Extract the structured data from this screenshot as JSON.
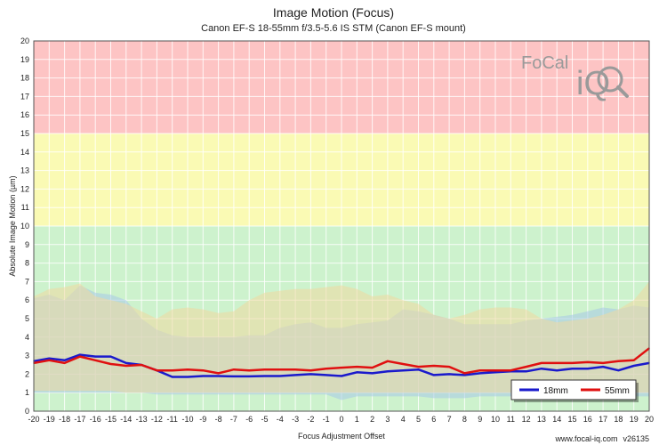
{
  "chart_data": {
    "type": "line",
    "title": "Image Motion (Focus)",
    "subtitle": "Canon EF-S 18-55mm f/3.5-5.6 IS STM (Canon EF-S mount)",
    "xlabel": "Focus Adjustment Offset",
    "ylabel": "Absolute Image Motion (µm)",
    "xlim": [
      -20,
      20
    ],
    "ylim": [
      0,
      20
    ],
    "x_ticks": [
      -20,
      -19,
      -18,
      -17,
      -16,
      -15,
      -14,
      -13,
      -12,
      -11,
      -10,
      -9,
      -8,
      -7,
      -6,
      -5,
      -4,
      -3,
      -2,
      -1,
      0,
      1,
      2,
      3,
      4,
      5,
      6,
      7,
      8,
      9,
      10,
      11,
      12,
      13,
      14,
      15,
      16,
      17,
      18,
      19,
      20
    ],
    "y_ticks": [
      0,
      1,
      2,
      3,
      4,
      5,
      6,
      7,
      8,
      9,
      10,
      11,
      12,
      13,
      14,
      15,
      16,
      17,
      18,
      19,
      20
    ],
    "grid": true,
    "legend_position": "bottom-right",
    "zones": [
      {
        "from": 0,
        "to": 10,
        "color": "#cdf2cd"
      },
      {
        "from": 10,
        "to": 15,
        "color": "#fafab4"
      },
      {
        "from": 15,
        "to": 20,
        "color": "#fdc4c4"
      }
    ],
    "x": [
      -20,
      -19,
      -18,
      -17,
      -16,
      -15,
      -14,
      -13,
      -12,
      -11,
      -10,
      -9,
      -8,
      -7,
      -6,
      -5,
      -4,
      -3,
      -2,
      -1,
      0,
      1,
      2,
      3,
      4,
      5,
      6,
      7,
      8,
      9,
      10,
      11,
      12,
      13,
      14,
      15,
      16,
      17,
      18,
      19,
      20
    ],
    "series": [
      {
        "name": "18mm",
        "color": "#1a1acc",
        "band_color": "#a8c8e8",
        "values": [
          2.7,
          2.85,
          2.75,
          3.05,
          2.95,
          2.95,
          2.6,
          2.5,
          2.2,
          1.85,
          1.85,
          1.9,
          1.9,
          1.88,
          1.88,
          1.9,
          1.9,
          1.95,
          2.0,
          1.95,
          1.9,
          2.1,
          2.05,
          2.15,
          2.2,
          2.25,
          1.95,
          2.0,
          1.95,
          2.05,
          2.1,
          2.15,
          2.15,
          2.3,
          2.2,
          2.3,
          2.3,
          2.4,
          2.2,
          2.45,
          2.6
        ],
        "band_upper": [
          6.1,
          6.3,
          6.0,
          6.8,
          6.4,
          6.3,
          6.0,
          5.0,
          4.4,
          4.1,
          4.0,
          4.0,
          4.0,
          4.0,
          4.1,
          4.1,
          4.5,
          4.7,
          4.8,
          4.5,
          4.5,
          4.7,
          4.8,
          4.9,
          5.5,
          5.4,
          5.2,
          5.0,
          4.7,
          4.7,
          4.7,
          4.7,
          4.9,
          5.0,
          5.1,
          5.2,
          5.4,
          5.6,
          5.5,
          5.7,
          5.6
        ],
        "band_lower": [
          1.0,
          1.0,
          1.0,
          1.0,
          1.0,
          1.0,
          1.0,
          1.0,
          0.9,
          0.9,
          0.9,
          0.9,
          0.9,
          0.9,
          0.9,
          0.9,
          0.9,
          0.9,
          0.9,
          0.9,
          0.6,
          0.8,
          0.8,
          0.8,
          0.8,
          0.8,
          0.7,
          0.7,
          0.7,
          0.8,
          0.8,
          0.8,
          0.8,
          0.8,
          0.8,
          0.8,
          0.8,
          0.8,
          0.8,
          0.8,
          0.8
        ]
      },
      {
        "name": "55mm",
        "color": "#e01010",
        "band_color": "#f0d8a0",
        "values": [
          2.6,
          2.75,
          2.6,
          2.95,
          2.75,
          2.55,
          2.45,
          2.5,
          2.2,
          2.2,
          2.25,
          2.2,
          2.05,
          2.25,
          2.2,
          2.25,
          2.25,
          2.25,
          2.2,
          2.3,
          2.35,
          2.4,
          2.35,
          2.7,
          2.55,
          2.4,
          2.45,
          2.4,
          2.05,
          2.2,
          2.2,
          2.2,
          2.4,
          2.6,
          2.6,
          2.6,
          2.65,
          2.6,
          2.7,
          2.75,
          3.4
        ],
        "band_upper": [
          6.2,
          6.6,
          6.7,
          6.9,
          6.2,
          6.0,
          5.8,
          5.4,
          5.0,
          5.5,
          5.6,
          5.5,
          5.3,
          5.4,
          6.0,
          6.4,
          6.5,
          6.6,
          6.6,
          6.7,
          6.8,
          6.6,
          6.2,
          6.3,
          6.0,
          5.8,
          5.2,
          5.0,
          5.2,
          5.5,
          5.6,
          5.6,
          5.5,
          5.0,
          4.8,
          4.9,
          5.0,
          5.2,
          5.5,
          6.0,
          7.0
        ],
        "band_lower": [
          1.1,
          1.1,
          1.1,
          1.1,
          1.1,
          1.1,
          1.0,
          1.0,
          1.0,
          1.0,
          1.0,
          1.0,
          1.0,
          1.0,
          1.0,
          1.0,
          1.0,
          1.0,
          1.0,
          1.0,
          1.0,
          1.0,
          1.0,
          1.0,
          1.0,
          1.0,
          1.0,
          1.0,
          1.0,
          1.0,
          1.0,
          1.0,
          1.0,
          1.0,
          1.0,
          1.0,
          1.0,
          1.0,
          1.0,
          1.0,
          1.0
        ]
      }
    ]
  },
  "logo": {
    "line1": "FoCal",
    "line2": "iQ"
  },
  "footer": {
    "site": "www.focal-iq.com",
    "version": "v26135"
  }
}
